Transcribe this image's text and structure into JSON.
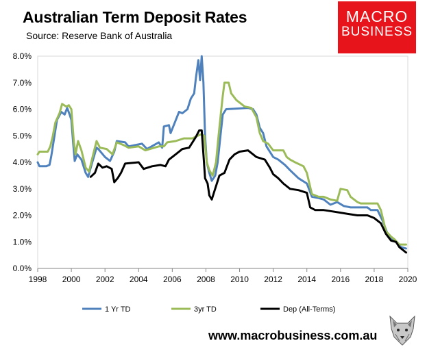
{
  "header": {
    "title": "Australian Term Deposit Rates",
    "subtitle": "Source: Reserve Bank of Australia"
  },
  "logo": {
    "line1": "MACRO",
    "line2": "BUSINESS",
    "color": "#e8141c"
  },
  "footer": {
    "website": "www.macrobusiness.com.au"
  },
  "mascot": {
    "icon": "wolf-icon"
  },
  "chart_data": {
    "type": "line",
    "title": "Australian Term Deposit Rates",
    "subtitle": "Source: Reserve Bank of Australia",
    "xlabel": "",
    "ylabel": "",
    "xlim": [
      1998,
      2020
    ],
    "ylim": [
      0,
      8
    ],
    "x_ticks": [
      1998,
      2000,
      2002,
      2004,
      2006,
      2008,
      2010,
      2012,
      2014,
      2016,
      2018,
      2020
    ],
    "x_tick_labels": [
      "1998",
      "2000",
      "2002",
      "2004",
      "2006",
      "2008",
      "2010",
      "2012",
      "2014",
      "2016",
      "2018",
      "2020"
    ],
    "y_ticks": [
      0,
      1,
      2,
      3,
      4,
      5,
      6,
      7,
      8
    ],
    "y_tick_labels": [
      "0.0%",
      "1.0%",
      "2.0%",
      "3.0%",
      "4.0%",
      "5.0%",
      "6.0%",
      "7.0%",
      "8.0%"
    ],
    "grid": false,
    "legend_position": "bottom",
    "series": [
      {
        "name": "1 Yr TD",
        "color": "#4f81bd",
        "points": [
          [
            1998.0,
            4.0
          ],
          [
            1998.1,
            3.85
          ],
          [
            1998.5,
            3.85
          ],
          [
            1998.7,
            3.9
          ],
          [
            1998.8,
            4.2
          ],
          [
            1998.95,
            4.8
          ],
          [
            1999.15,
            5.6
          ],
          [
            1999.4,
            5.9
          ],
          [
            1999.6,
            5.8
          ],
          [
            1999.75,
            6.05
          ],
          [
            1999.9,
            5.8
          ],
          [
            2000.0,
            5.6
          ],
          [
            2000.1,
            4.8
          ],
          [
            2000.2,
            4.05
          ],
          [
            2000.35,
            4.3
          ],
          [
            2000.6,
            4.1
          ],
          [
            2000.85,
            3.6
          ],
          [
            2001.0,
            3.45
          ],
          [
            2001.2,
            3.9
          ],
          [
            2001.5,
            4.55
          ],
          [
            2001.6,
            4.5
          ],
          [
            2002.0,
            4.2
          ],
          [
            2002.3,
            4.05
          ],
          [
            2002.55,
            4.4
          ],
          [
            2002.7,
            4.8
          ],
          [
            2003.2,
            4.75
          ],
          [
            2003.4,
            4.6
          ],
          [
            2004.2,
            4.7
          ],
          [
            2004.5,
            4.5
          ],
          [
            2005.2,
            4.75
          ],
          [
            2005.4,
            4.55
          ],
          [
            2005.5,
            5.35
          ],
          [
            2005.8,
            5.4
          ],
          [
            2005.9,
            5.1
          ],
          [
            2006.4,
            5.9
          ],
          [
            2006.6,
            5.85
          ],
          [
            2006.9,
            6.0
          ],
          [
            2007.1,
            6.4
          ],
          [
            2007.3,
            6.6
          ],
          [
            2007.4,
            7.15
          ],
          [
            2007.55,
            7.85
          ],
          [
            2007.65,
            7.1
          ],
          [
            2007.75,
            8.0
          ],
          [
            2007.85,
            7.0
          ],
          [
            2007.95,
            5.0
          ],
          [
            2008.05,
            4.0
          ],
          [
            2008.2,
            3.6
          ],
          [
            2008.35,
            3.3
          ],
          [
            2008.55,
            3.5
          ],
          [
            2008.7,
            4.0
          ],
          [
            2008.9,
            5.2
          ],
          [
            2009.0,
            5.8
          ],
          [
            2009.2,
            6.0
          ],
          [
            2010.5,
            6.05
          ],
          [
            2010.8,
            6.0
          ],
          [
            2011.0,
            5.8
          ],
          [
            2011.2,
            5.3
          ],
          [
            2011.4,
            5.1
          ],
          [
            2011.6,
            4.6
          ],
          [
            2012.0,
            4.2
          ],
          [
            2012.3,
            4.1
          ],
          [
            2012.7,
            3.9
          ],
          [
            2013.0,
            3.7
          ],
          [
            2013.5,
            3.4
          ],
          [
            2014.0,
            3.2
          ],
          [
            2014.3,
            2.7
          ],
          [
            2014.7,
            2.65
          ],
          [
            2015.0,
            2.6
          ],
          [
            2015.4,
            2.4
          ],
          [
            2015.8,
            2.5
          ],
          [
            2016.2,
            2.35
          ],
          [
            2016.6,
            2.3
          ],
          [
            2017.6,
            2.3
          ],
          [
            2017.8,
            2.2
          ],
          [
            2018.2,
            2.2
          ],
          [
            2018.5,
            1.8
          ],
          [
            2018.8,
            1.3
          ],
          [
            2019.0,
            1.1
          ],
          [
            2019.3,
            1.0
          ],
          [
            2019.6,
            0.8
          ],
          [
            2019.9,
            0.75
          ]
        ]
      },
      {
        "name": "3yr TD",
        "color": "#9bbb59",
        "points": [
          [
            1998.0,
            4.3
          ],
          [
            1998.1,
            4.4
          ],
          [
            1998.6,
            4.4
          ],
          [
            1998.75,
            4.6
          ],
          [
            1998.9,
            5.0
          ],
          [
            1999.05,
            5.5
          ],
          [
            1999.3,
            5.85
          ],
          [
            1999.45,
            6.2
          ],
          [
            1999.7,
            6.1
          ],
          [
            1999.85,
            6.15
          ],
          [
            2000.0,
            6.0
          ],
          [
            2000.15,
            4.75
          ],
          [
            2000.25,
            4.3
          ],
          [
            2000.4,
            4.8
          ],
          [
            2000.6,
            4.45
          ],
          [
            2000.85,
            3.8
          ],
          [
            2001.05,
            3.65
          ],
          [
            2001.3,
            4.3
          ],
          [
            2001.5,
            4.8
          ],
          [
            2001.7,
            4.55
          ],
          [
            2002.1,
            4.5
          ],
          [
            2002.45,
            4.3
          ],
          [
            2002.7,
            4.75
          ],
          [
            2003.1,
            4.65
          ],
          [
            2003.4,
            4.55
          ],
          [
            2004.0,
            4.6
          ],
          [
            2004.4,
            4.45
          ],
          [
            2005.2,
            4.6
          ],
          [
            2005.5,
            4.6
          ],
          [
            2005.7,
            4.75
          ],
          [
            2006.2,
            4.8
          ],
          [
            2006.7,
            4.9
          ],
          [
            2007.2,
            4.9
          ],
          [
            2007.5,
            5.0
          ],
          [
            2007.7,
            5.05
          ],
          [
            2007.9,
            5.0
          ],
          [
            2008.05,
            4.0
          ],
          [
            2008.2,
            3.7
          ],
          [
            2008.4,
            3.5
          ],
          [
            2008.6,
            4.0
          ],
          [
            2008.75,
            5.0
          ],
          [
            2008.9,
            5.9
          ],
          [
            2009.0,
            6.5
          ],
          [
            2009.1,
            7.0
          ],
          [
            2009.35,
            7.0
          ],
          [
            2009.5,
            6.6
          ],
          [
            2009.8,
            6.35
          ],
          [
            2010.3,
            6.1
          ],
          [
            2010.7,
            6.05
          ],
          [
            2011.0,
            5.7
          ],
          [
            2011.2,
            5.1
          ],
          [
            2011.4,
            4.8
          ],
          [
            2011.7,
            4.7
          ],
          [
            2012.0,
            4.45
          ],
          [
            2012.6,
            4.45
          ],
          [
            2012.8,
            4.2
          ],
          [
            2013.0,
            4.1
          ],
          [
            2013.3,
            4.0
          ],
          [
            2013.8,
            3.85
          ],
          [
            2014.0,
            3.6
          ],
          [
            2014.3,
            2.8
          ],
          [
            2014.7,
            2.7
          ],
          [
            2015.0,
            2.7
          ],
          [
            2015.4,
            2.6
          ],
          [
            2015.8,
            2.55
          ],
          [
            2016.0,
            3.0
          ],
          [
            2016.4,
            2.95
          ],
          [
            2016.6,
            2.7
          ],
          [
            2017.0,
            2.5
          ],
          [
            2017.2,
            2.45
          ],
          [
            2018.2,
            2.45
          ],
          [
            2018.4,
            2.2
          ],
          [
            2018.7,
            1.4
          ],
          [
            2019.0,
            1.2
          ],
          [
            2019.2,
            1.1
          ],
          [
            2019.5,
            0.9
          ],
          [
            2019.9,
            0.9
          ]
        ]
      },
      {
        "name": "Dep (All-Terms)",
        "color": "#000000",
        "points": [
          [
            2001.15,
            3.45
          ],
          [
            2001.4,
            3.6
          ],
          [
            2001.6,
            3.95
          ],
          [
            2001.85,
            3.8
          ],
          [
            2002.1,
            3.85
          ],
          [
            2002.4,
            3.75
          ],
          [
            2002.55,
            3.25
          ],
          [
            2002.75,
            3.4
          ],
          [
            2002.95,
            3.6
          ],
          [
            2003.2,
            3.95
          ],
          [
            2004.0,
            4.0
          ],
          [
            2004.3,
            3.75
          ],
          [
            2004.8,
            3.85
          ],
          [
            2005.3,
            3.9
          ],
          [
            2005.6,
            3.85
          ],
          [
            2005.8,
            4.1
          ],
          [
            2006.2,
            4.3
          ],
          [
            2006.6,
            4.5
          ],
          [
            2007.0,
            4.55
          ],
          [
            2007.4,
            4.95
          ],
          [
            2007.6,
            5.2
          ],
          [
            2007.75,
            5.2
          ],
          [
            2007.85,
            4.3
          ],
          [
            2007.95,
            3.4
          ],
          [
            2008.1,
            3.2
          ],
          [
            2008.2,
            2.75
          ],
          [
            2008.35,
            2.6
          ],
          [
            2008.5,
            2.9
          ],
          [
            2008.8,
            3.5
          ],
          [
            2009.1,
            3.6
          ],
          [
            2009.4,
            4.1
          ],
          [
            2009.7,
            4.3
          ],
          [
            2010.0,
            4.4
          ],
          [
            2010.5,
            4.45
          ],
          [
            2010.7,
            4.35
          ],
          [
            2011.0,
            4.2
          ],
          [
            2011.5,
            4.1
          ],
          [
            2011.8,
            3.8
          ],
          [
            2012.0,
            3.55
          ],
          [
            2012.3,
            3.4
          ],
          [
            2012.6,
            3.2
          ],
          [
            2013.0,
            3.0
          ],
          [
            2013.5,
            2.95
          ],
          [
            2014.0,
            2.85
          ],
          [
            2014.2,
            2.3
          ],
          [
            2014.5,
            2.2
          ],
          [
            2015.0,
            2.2
          ],
          [
            2015.5,
            2.15
          ],
          [
            2016.0,
            2.1
          ],
          [
            2016.5,
            2.05
          ],
          [
            2017.0,
            2.0
          ],
          [
            2017.6,
            2.0
          ],
          [
            2018.0,
            1.9
          ],
          [
            2018.4,
            1.7
          ],
          [
            2018.7,
            1.3
          ],
          [
            2019.0,
            1.05
          ],
          [
            2019.3,
            1.0
          ],
          [
            2019.5,
            0.8
          ],
          [
            2019.9,
            0.6
          ]
        ]
      }
    ]
  }
}
